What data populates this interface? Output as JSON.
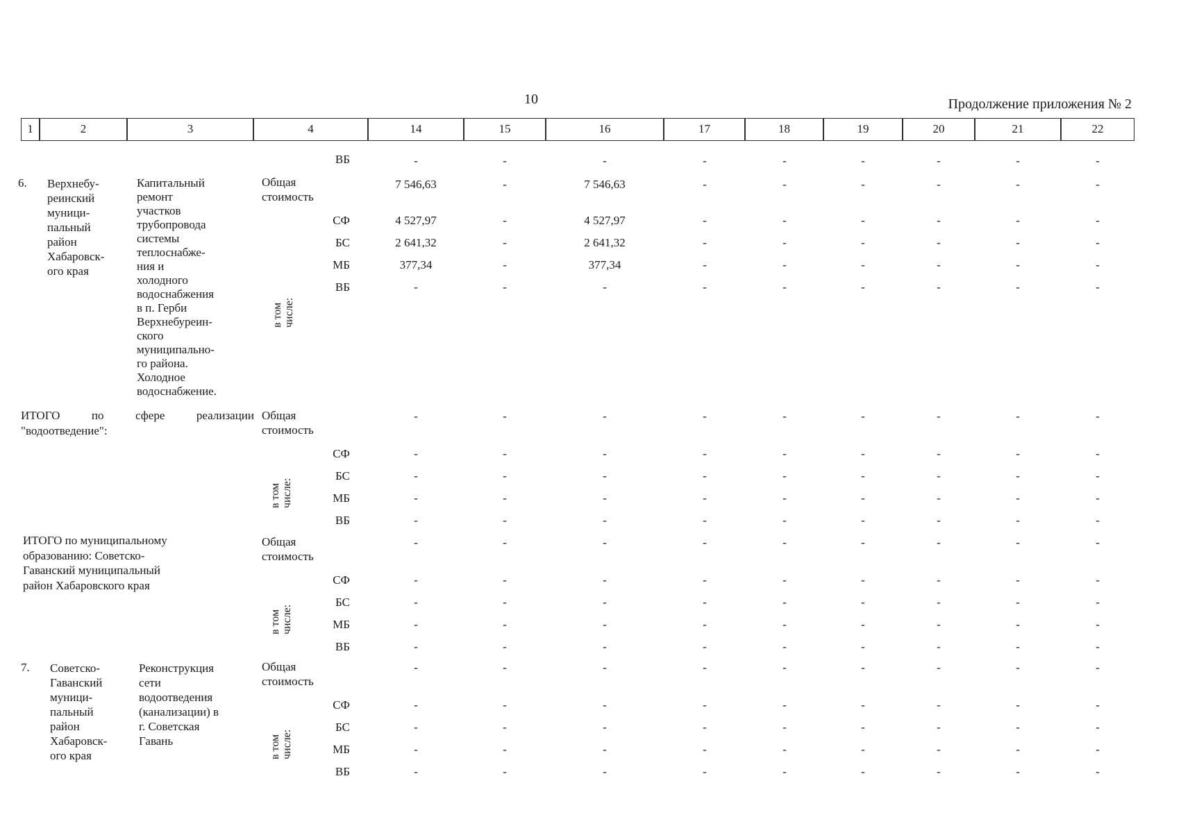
{
  "page": {
    "number": "10",
    "continuation": "Продолжение приложения № 2"
  },
  "labels": {
    "total": "Общая стоимость",
    "including": "в том числе:",
    "sf": "СФ",
    "bs": "БС",
    "mb": "МБ",
    "vb": "ВБ"
  },
  "table": {
    "columns": [
      "1",
      "2",
      "3",
      "4",
      "14",
      "15",
      "16",
      "17",
      "18",
      "19",
      "20",
      "21",
      "22"
    ],
    "carryover": {
      "vb": [
        "-",
        "-",
        "-",
        "-",
        "-",
        "-",
        "-",
        "-",
        "-"
      ]
    },
    "item6": {
      "num": "6.",
      "municipality": "Верхнебу-\nреинский\nмуници-\nпальный\nрайон\nХабаровск-\nого края",
      "project": "Капитальный\nремонт\nучастков\nтрубопровода\nсистемы\nтеплоснабже-\nния и\nхолодного\nводоснабжения\nв п. Герби\nВерхнебуреин-\nского\nмуниципально-\nго района.\nХолодное\nводоснабжение.",
      "rows": {
        "total": [
          "7 546,63",
          "-",
          "7 546,63",
          "-",
          "-",
          "-",
          "-",
          "-",
          "-"
        ],
        "sf": [
          "4 527,97",
          "-",
          "4 527,97",
          "-",
          "-",
          "-",
          "-",
          "-",
          "-"
        ],
        "bs": [
          "2 641,32",
          "-",
          "2 641,32",
          "-",
          "-",
          "-",
          "-",
          "-",
          "-"
        ],
        "mb": [
          "377,34",
          "-",
          "377,34",
          "-",
          "-",
          "-",
          "-",
          "-",
          "-"
        ],
        "vb": [
          "-",
          "-",
          "-",
          "-",
          "-",
          "-",
          "-",
          "-",
          "-"
        ]
      }
    },
    "subtotal_sphere": {
      "title": "ИТОГО по сфере реализации \"водоотведение\":",
      "rows": {
        "total": [
          "-",
          "-",
          "-",
          "-",
          "-",
          "-",
          "-",
          "-",
          "-"
        ],
        "sf": [
          "-",
          "-",
          "-",
          "-",
          "-",
          "-",
          "-",
          "-",
          "-"
        ],
        "bs": [
          "-",
          "-",
          "-",
          "-",
          "-",
          "-",
          "-",
          "-",
          "-"
        ],
        "mb": [
          "-",
          "-",
          "-",
          "-",
          "-",
          "-",
          "-",
          "-",
          "-"
        ],
        "vb": [
          "-",
          "-",
          "-",
          "-",
          "-",
          "-",
          "-",
          "-",
          "-"
        ]
      }
    },
    "subtotal_municipal": {
      "title": "ИТОГО по муниципальному\nобразованию: Советско-\nГаванский муниципальный\nрайон Хабаровского края",
      "rows": {
        "total": [
          "-",
          "-",
          "-",
          "-",
          "-",
          "-",
          "-",
          "-",
          "-"
        ],
        "sf": [
          "-",
          "-",
          "-",
          "-",
          "-",
          "-",
          "-",
          "-",
          "-"
        ],
        "bs": [
          "-",
          "-",
          "-",
          "-",
          "-",
          "-",
          "-",
          "-",
          "-"
        ],
        "mb": [
          "-",
          "-",
          "-",
          "-",
          "-",
          "-",
          "-",
          "-",
          "-"
        ],
        "vb": [
          "-",
          "-",
          "-",
          "-",
          "-",
          "-",
          "-",
          "-",
          "-"
        ]
      }
    },
    "item7": {
      "num": "7.",
      "municipality": "Советско-\nГаванский\nмуници-\nпальный\nрайон\nХабаровск-\nого края",
      "project": "Реконструкция\nсети\nводоотведения\n(канализации) в\nг. Советская\nГавань",
      "rows": {
        "total": [
          "-",
          "-",
          "-",
          "-",
          "-",
          "-",
          "-",
          "-",
          "-"
        ],
        "sf": [
          "-",
          "-",
          "-",
          "-",
          "-",
          "-",
          "-",
          "-",
          "-"
        ],
        "bs": [
          "-",
          "-",
          "-",
          "-",
          "-",
          "-",
          "-",
          "-",
          "-"
        ],
        "mb": [
          "-",
          "-",
          "-",
          "-",
          "-",
          "-",
          "-",
          "-",
          "-"
        ],
        "vb": [
          "-",
          "-",
          "-",
          "-",
          "-",
          "-",
          "-",
          "-",
          "-"
        ]
      }
    }
  }
}
